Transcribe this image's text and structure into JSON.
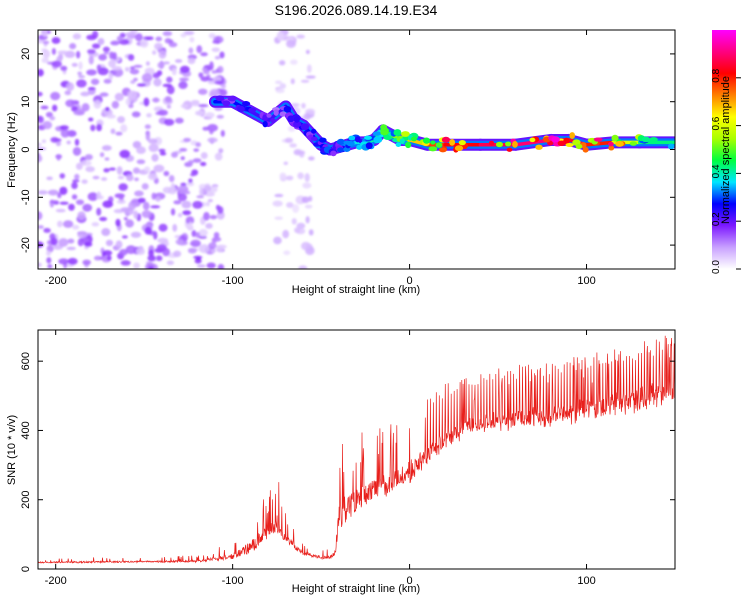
{
  "title": "S196.2026.089.14.19.E34",
  "chart_data": [
    {
      "type": "heatmap",
      "name": "spectrogram",
      "xlabel": "Height of straight line (km)",
      "ylabel": "Frequency (Hz)",
      "xlim": [
        -210,
        150
      ],
      "ylim": [
        -25,
        25
      ],
      "xticks": [
        -200,
        -100,
        0,
        100
      ],
      "yticks": [
        -20,
        -10,
        0,
        10,
        20
      ],
      "colorbar": {
        "label": "Normalized spectral amplitude",
        "range": [
          0,
          1
        ],
        "ticks": [
          0,
          0.2,
          0.4,
          0.6,
          0.8
        ],
        "tick_labels": [
          "0.0",
          "0.2",
          "0.4",
          "0.6",
          "0.8"
        ],
        "colors": [
          "#ffffff",
          "#c8a0ff",
          "#7d19ff",
          "#0000ff",
          "#00e6ff",
          "#00ff40",
          "#aaff00",
          "#ffff00",
          "#ff8000",
          "#ff0000",
          "#ff0080",
          "#ff00ff"
        ]
      },
      "noise_regions": [
        {
          "x": [
            -210,
            -105
          ],
          "y": [
            -25,
            25
          ],
          "density": "high"
        },
        {
          "x": [
            -75,
            -55
          ],
          "y": [
            -25,
            25
          ],
          "density": "low"
        }
      ],
      "ridge": {
        "x": [
          -110,
          -100,
          -90,
          -80,
          -70,
          -65,
          -60,
          -55,
          -50,
          -45,
          -40,
          -35,
          -30,
          -25,
          -20,
          -15,
          -10,
          -5,
          0,
          10,
          20,
          40,
          60,
          80,
          90,
          100,
          115,
          130,
          150
        ],
        "y": [
          10,
          10,
          8,
          6,
          9,
          6,
          5,
          3,
          1,
          0,
          0.5,
          1,
          1.5,
          1.5,
          2,
          4,
          3,
          2,
          2,
          1,
          1,
          1,
          1,
          2,
          2,
          1,
          1.5,
          1.5,
          1.5
        ],
        "amplitude": [
          0.25,
          0.3,
          0.25,
          0.2,
          0.25,
          0.25,
          0.25,
          0.3,
          0.3,
          0.25,
          0.3,
          0.35,
          0.35,
          0.4,
          0.4,
          0.45,
          0.5,
          0.55,
          0.6,
          0.75,
          0.8,
          0.85,
          0.9,
          0.9,
          0.85,
          0.85,
          0.75,
          0.45,
          0.4
        ]
      }
    },
    {
      "type": "line",
      "name": "snr",
      "xlabel": "Height of straight line (km)",
      "ylabel": "SNR (10 * v/v)",
      "xlim": [
        -210,
        150
      ],
      "ylim": [
        0,
        690
      ],
      "xticks": [
        -200,
        -100,
        0,
        100
      ],
      "yticks": [
        0,
        200,
        400,
        600
      ],
      "color": "#e8201c",
      "series": [
        {
          "name": "SNR",
          "x": [
            -210,
            -180,
            -150,
            -120,
            -100,
            -90,
            -80,
            -75,
            -70,
            -60,
            -50,
            -45,
            -42,
            -40,
            -35,
            -30,
            -20,
            -10,
            0,
            10,
            20,
            30,
            40,
            60,
            80,
            100,
            120,
            140,
            150
          ],
          "baseline": [
            18,
            18,
            20,
            20,
            30,
            45,
            90,
            110,
            80,
            40,
            30,
            30,
            30,
            110,
            150,
            170,
            200,
            230,
            260,
            310,
            360,
            390,
            410,
            420,
            430,
            450,
            470,
            490,
            500
          ],
          "peak": [
            30,
            35,
            35,
            40,
            80,
            180,
            230,
            280,
            160,
            80,
            60,
            60,
            120,
            430,
            400,
            390,
            420,
            440,
            470,
            500,
            540,
            560,
            570,
            590,
            600,
            620,
            640,
            670,
            680
          ]
        }
      ]
    }
  ]
}
